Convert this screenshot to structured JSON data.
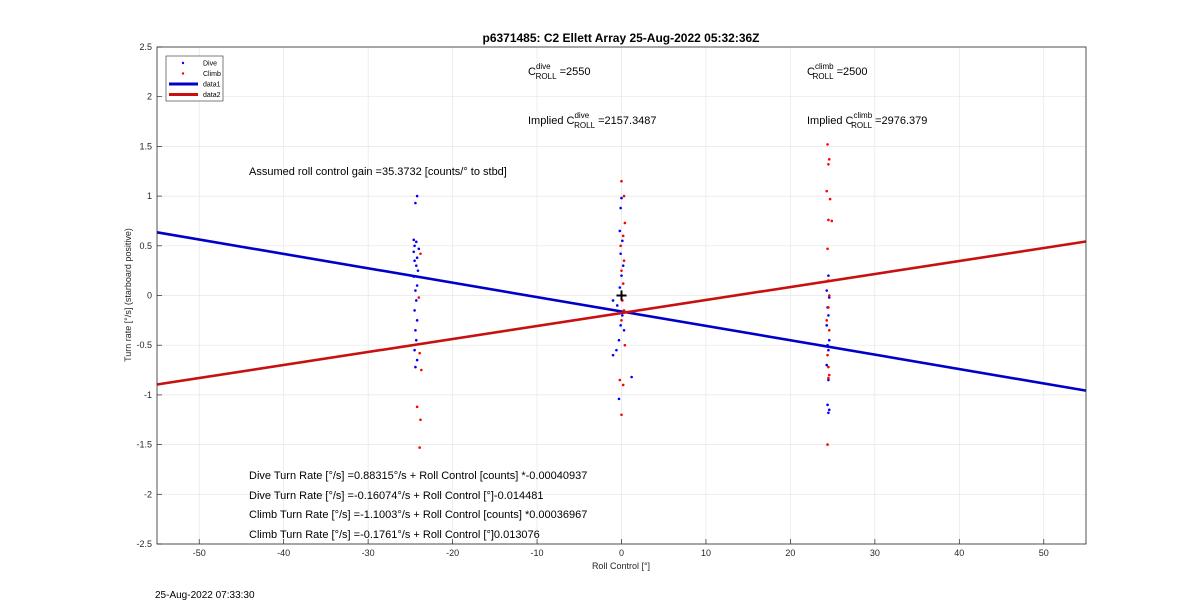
{
  "chart_data": {
    "type": "scatter",
    "title": "p6371485: C2 Ellett Array 25-Aug-2022 05:32:36Z",
    "xlabel": "Roll Control [°]",
    "ylabel": "Turn rate [°/s] (starboard positive)",
    "xlim": [
      -55,
      55
    ],
    "ylim": [
      -2.5,
      2.5
    ],
    "xticks": [
      "-50",
      "-40",
      "-30",
      "-20",
      "-10",
      "0",
      "10",
      "20",
      "30",
      "40",
      "50"
    ],
    "yticks": [
      "2.5",
      "2",
      "1.5",
      "1",
      "0.5",
      "0",
      "-0.5",
      "-1",
      "-1.5",
      "-2",
      "-2.5"
    ],
    "xtick_values": [
      -50,
      -40,
      -30,
      -20,
      -10,
      0,
      10,
      20,
      30,
      40,
      50
    ],
    "ytick_values": [
      2.5,
      2,
      1.5,
      1,
      0.5,
      0,
      -0.5,
      -1,
      -1.5,
      -2,
      -2.5
    ],
    "grid": true,
    "legend_position": "top-left",
    "legend": [
      "Dive",
      "Climb",
      "data1",
      "data2"
    ],
    "colors": {
      "dive": "#0000ff",
      "climb": "#ff0000",
      "data1": "#0000c8",
      "data2": "#c81010"
    },
    "series": [
      {
        "name": "Dive",
        "points": [
          [
            -24.2,
            1.0
          ],
          [
            -24.4,
            0.93
          ],
          [
            -24.6,
            0.56
          ],
          [
            -24.3,
            0.54
          ],
          [
            -24.5,
            0.5
          ],
          [
            -24.0,
            0.47
          ],
          [
            -24.6,
            0.44
          ],
          [
            -24.2,
            0.38
          ],
          [
            -24.5,
            0.35
          ],
          [
            -24.3,
            0.3
          ],
          [
            -24.1,
            0.25
          ],
          [
            -24.6,
            0.19
          ],
          [
            -24.2,
            0.1
          ],
          [
            -24.4,
            0.05
          ],
          [
            -24.3,
            -0.05
          ],
          [
            -24.5,
            -0.15
          ],
          [
            -24.2,
            -0.25
          ],
          [
            -24.4,
            -0.35
          ],
          [
            -24.3,
            -0.45
          ],
          [
            -24.5,
            -0.55
          ],
          [
            -24.2,
            -0.65
          ],
          [
            -24.4,
            -0.72
          ],
          [
            0.0,
            0.98
          ],
          [
            -0.1,
            0.88
          ],
          [
            -0.2,
            0.65
          ],
          [
            0.1,
            0.55
          ],
          [
            -0.1,
            0.42
          ],
          [
            0.2,
            0.3
          ],
          [
            0.0,
            0.2
          ],
          [
            -0.2,
            0.08
          ],
          [
            -1.0,
            -0.05
          ],
          [
            -0.5,
            -0.1
          ],
          [
            0.1,
            -0.2
          ],
          [
            -0.1,
            -0.3
          ],
          [
            0.3,
            -0.35
          ],
          [
            -0.3,
            -0.45
          ],
          [
            -0.6,
            -0.55
          ],
          [
            -1.0,
            -0.6
          ],
          [
            1.2,
            -0.82
          ],
          [
            -0.3,
            -1.04
          ],
          [
            24.5,
            0.2
          ],
          [
            24.3,
            0.05
          ],
          [
            24.6,
            -0.02
          ],
          [
            24.4,
            -0.12
          ],
          [
            24.5,
            -0.2
          ],
          [
            24.3,
            -0.3
          ],
          [
            24.6,
            -0.45
          ],
          [
            24.4,
            -0.5
          ],
          [
            24.5,
            -0.55
          ],
          [
            24.3,
            -0.7
          ],
          [
            24.5,
            -0.85
          ],
          [
            24.4,
            -1.1
          ],
          [
            24.6,
            -1.15
          ],
          [
            24.5,
            -1.18
          ]
        ]
      },
      {
        "name": "Climb",
        "points": [
          [
            -23.8,
            0.42
          ],
          [
            -24.0,
            -0.02
          ],
          [
            -23.9,
            -0.58
          ],
          [
            -23.7,
            -0.75
          ],
          [
            -24.2,
            -1.12
          ],
          [
            -23.8,
            -1.25
          ],
          [
            -23.9,
            -1.53
          ],
          [
            0.0,
            1.15
          ],
          [
            0.3,
            1.0
          ],
          [
            0.4,
            0.73
          ],
          [
            0.2,
            0.6
          ],
          [
            -0.1,
            0.5
          ],
          [
            0.3,
            0.35
          ],
          [
            0.0,
            0.25
          ],
          [
            0.2,
            0.12
          ],
          [
            0.1,
            -0.05
          ],
          [
            0.3,
            -0.15
          ],
          [
            0.0,
            -0.25
          ],
          [
            0.4,
            -0.5
          ],
          [
            -0.2,
            -0.85
          ],
          [
            0.2,
            -0.9
          ],
          [
            0.0,
            -1.2
          ],
          [
            24.4,
            1.52
          ],
          [
            24.6,
            1.37
          ],
          [
            24.5,
            1.32
          ],
          [
            24.3,
            1.05
          ],
          [
            24.7,
            0.97
          ],
          [
            24.5,
            0.76
          ],
          [
            24.9,
            0.75
          ],
          [
            24.4,
            0.47
          ],
          [
            24.5,
            0.15
          ],
          [
            24.6,
            0.0
          ],
          [
            24.5,
            -0.12
          ],
          [
            24.3,
            -0.25
          ],
          [
            24.6,
            -0.35
          ],
          [
            24.4,
            -0.6
          ],
          [
            24.5,
            -0.72
          ],
          [
            24.6,
            -0.8
          ],
          [
            24.5,
            -0.83
          ],
          [
            24.4,
            -1.5
          ]
        ]
      },
      {
        "name": "data1",
        "type": "line",
        "slope": -0.014481,
        "intercept": -0.16074
      },
      {
        "name": "data2",
        "type": "line",
        "slope": 0.013076,
        "intercept": -0.1761
      }
    ],
    "center_marker": [
      0,
      0
    ]
  },
  "annotations": {
    "c_dive": {
      "base": "C",
      "sup": "dive",
      "sub": "ROLL",
      "value": " =2550"
    },
    "c_climb": {
      "base": "C",
      "sup": "climb",
      "sub": "ROLL",
      "value": " =2500"
    },
    "implied_dive": {
      "prefix": "Implied C",
      "sup": "dive",
      "sub": "ROLL",
      "value": " =2157.3487"
    },
    "implied_climb": {
      "prefix": "Implied C",
      "sup": "climb",
      "sub": "ROLL",
      "value": " =2976.379"
    },
    "gain": "Assumed roll control gain =35.3732 [counts/° to stbd]",
    "eq1": "Dive Turn Rate [°/s] =0.88315°/s + Roll Control [counts] *-0.00040937",
    "eq2": "Dive Turn Rate [°/s] =-0.16074°/s + Roll Control [°]-0.014481",
    "eq3": "Climb Turn Rate [°/s] =-1.1003°/s + Roll Control [counts] *0.00036967",
    "eq4": "Climb Turn Rate [°/s] =-0.1761°/s + Roll Control [°]0.013076"
  },
  "footer": {
    "timestamp": "25-Aug-2022 07:33:30"
  }
}
